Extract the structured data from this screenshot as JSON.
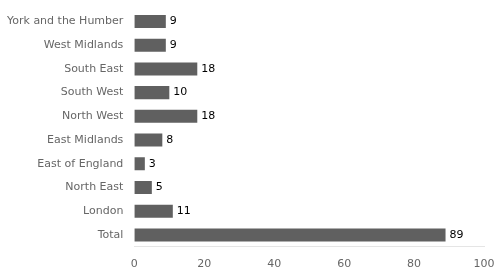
{
  "chart_data": {
    "type": "bar",
    "orientation": "horizontal",
    "categories": [
      "York and the Humber",
      "West Midlands",
      "South East",
      "South West",
      "North West",
      "East Midlands",
      "East of England",
      "North East",
      "London",
      "Total"
    ],
    "values": [
      9,
      9,
      18,
      10,
      18,
      8,
      3,
      5,
      11,
      89
    ],
    "color": "#606060",
    "xlim": [
      0,
      100
    ],
    "xticks": [
      0,
      20,
      40,
      60,
      80,
      100
    ],
    "grid": false,
    "data_labels": true
  }
}
